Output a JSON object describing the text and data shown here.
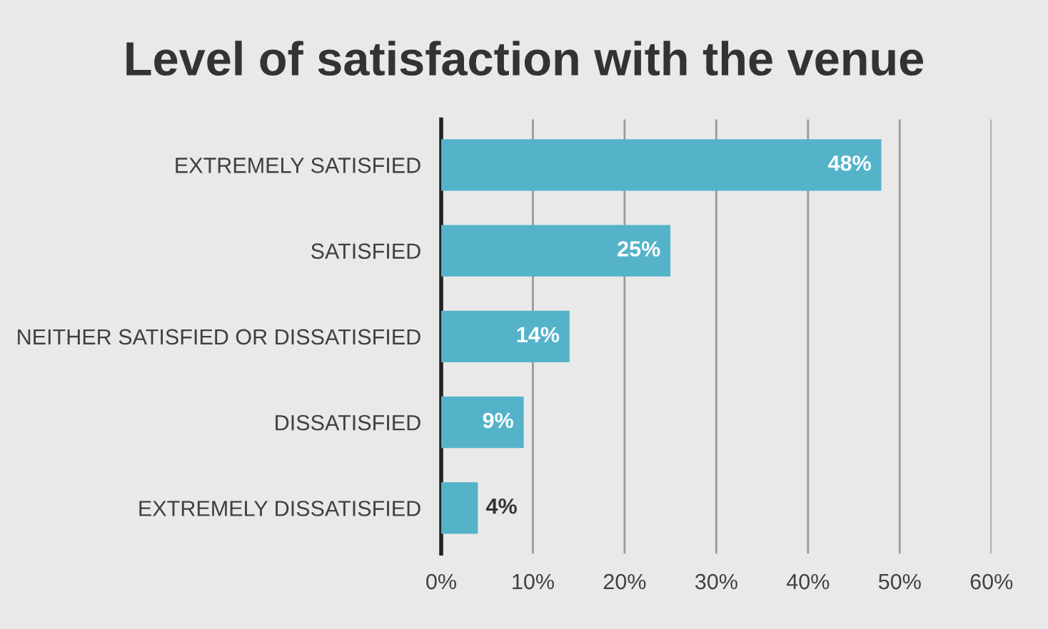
{
  "chart_data": {
    "type": "bar",
    "orientation": "horizontal",
    "title": "Level of satisfaction with the venue",
    "categories": [
      "EXTREMELY SATISFIED",
      "SATISFIED",
      "NEITHER SATISFIED OR DISSATISFIED",
      "DISSATISFIED",
      "EXTREMELY DISSATISFIED"
    ],
    "values": [
      48,
      25,
      14,
      9,
      4
    ],
    "value_labels": [
      "48%",
      "25%",
      "14%",
      "9%",
      "4%"
    ],
    "color": "#55b3c9",
    "xlim": [
      0,
      60
    ],
    "xticks": [
      {
        "value": 0,
        "label": "0%"
      },
      {
        "value": 10,
        "label": "10%"
      },
      {
        "value": 20,
        "label": "20%"
      },
      {
        "value": 30,
        "label": "30%"
      },
      {
        "value": 40,
        "label": "40%"
      },
      {
        "value": 50,
        "label": "50%"
      },
      {
        "value": 60,
        "label": "60%"
      }
    ],
    "grid": "x",
    "legend": false
  }
}
